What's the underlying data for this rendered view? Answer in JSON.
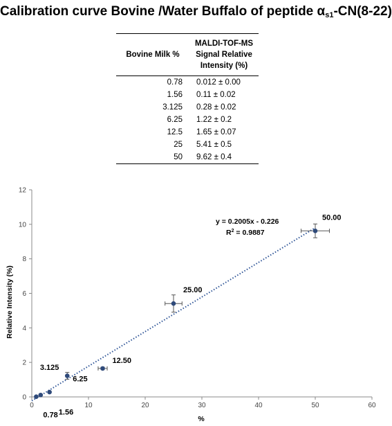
{
  "title": {
    "main": "Calibration  curve Bovine /Water Buffalo of peptide α",
    "sub": "s1",
    "suffix": "-CN(8-22)"
  },
  "table": {
    "headers": [
      "Bovine Milk %",
      "MALDI-TOF-MS Signal Relative Intensity (%)"
    ],
    "rows": [
      [
        "0.78",
        "0.012 ± 0.00"
      ],
      [
        "1.56",
        "0.11 ± 0.02"
      ],
      [
        "3.125",
        "0.28 ± 0.02"
      ],
      [
        "6.25",
        "1.22 ± 0.2"
      ],
      [
        "12.5",
        "1.65 ± 0.07"
      ],
      [
        "25",
        "5.41 ± 0.5"
      ],
      [
        "50",
        "9.62 ± 0.4"
      ]
    ]
  },
  "chart_data": {
    "type": "scatter",
    "xlabel": "%",
    "ylabel": "Relative Intensity (%)",
    "xlim": [
      0,
      60
    ],
    "ylim": [
      0,
      12
    ],
    "xticks": [
      0,
      10,
      20,
      30,
      40,
      50,
      60
    ],
    "yticks": [
      0,
      2,
      4,
      6,
      8,
      10,
      12
    ],
    "grid": false,
    "points": [
      {
        "x": 0.78,
        "y": 0.012,
        "yerr": 0.0,
        "xerr": 0.0,
        "label": "0.78"
      },
      {
        "x": 1.56,
        "y": 0.11,
        "yerr": 0.02,
        "xerr": 0.0,
        "label": "1.56"
      },
      {
        "x": 3.125,
        "y": 0.28,
        "yerr": 0.02,
        "xerr": 0.0,
        "label": "3.125"
      },
      {
        "x": 6.25,
        "y": 1.22,
        "yerr": 0.2,
        "xerr": 0.0,
        "label": "6.25"
      },
      {
        "x": 12.5,
        "y": 1.65,
        "yerr": 0.07,
        "xerr": 0.8,
        "label": "12.50"
      },
      {
        "x": 25,
        "y": 5.41,
        "yerr": 0.5,
        "xerr": 1.5,
        "label": "25.00"
      },
      {
        "x": 50,
        "y": 9.62,
        "yerr": 0.4,
        "xerr": 2.5,
        "label": "50.00"
      }
    ],
    "trendline": {
      "slope": 0.2005,
      "intercept": -0.226,
      "x_range": [
        0,
        50
      ],
      "equation": "y = 0.2005x - 0.226",
      "r2_label": "R",
      "r2_sup": "2",
      "r2_value": " = 0.9887"
    },
    "colors": {
      "marker": "#2f4a7a",
      "trendline": "#2f5597",
      "errorbar": "#555555"
    }
  }
}
